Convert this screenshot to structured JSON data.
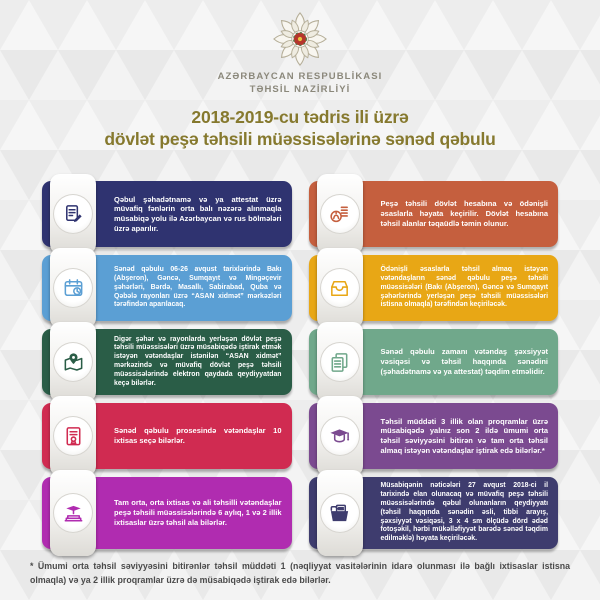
{
  "header": {
    "emblem_icon": "ministry-emblem",
    "org_line1": "AZƏRBAYCAN RESPUBLİKASI",
    "org_line2": "TƏHSİL NAZİRLİYİ",
    "title_line1": "2018-2019-cu tədris ili üzrə",
    "title_line2": "dövlət peşə təhsili müəssisələrinə sənəd qəbulu",
    "title_color": "#86792e"
  },
  "cards": [
    {
      "icon": "document-pencil",
      "color": "#2f3370",
      "text": "Qəbul şəhadətnamə və ya attestat üzrə müvafiq fənlərin orta balı nəzərə alınmaqla müsabiqə yolu ilə Azərbaycan və rus bölmələri üzrə aparılır."
    },
    {
      "icon": "coins",
      "color": "#c55f3e",
      "text": "Peşə təhsili dövlət hesabına və ödənişli əsaslarla həyata keçirilir. Dövlət hesabına təhsil alanlar təqaüdlə təmin olunur."
    },
    {
      "icon": "calendar-clock",
      "color": "#5b9fd4",
      "text": "Sənəd qəbulu 06-26 avqust tarixlərində Bakı (Abşeron), Gəncə, Sumqayıt və Mingəçevir şəhərləri, Bərdə, Masallı, Sabirabad, Quba və Qəbələ rayonları üzrə “ASAN xidmət” mərkəzləri tərəfindən aparılacaq."
    },
    {
      "icon": "inbox-tray",
      "color": "#e8a715",
      "text": "Ödənişli əsaslarla təhsil almaq istəyən vətəndaşların sənəd qəbulu peşə təhsili müəssisələri (Bakı (Abşeron), Gəncə və Sumqayıt şəhərlərində yerləşən peşə təhsili müəssisələri istisna olmaqla) tərəfindən keçiriləcək."
    },
    {
      "icon": "map-pin",
      "color": "#2a5d47",
      "text": "Digər şəhər və rayonlarda yerləşən dövlət peşə təhsili müəssisələri üzrə müsabiqədə iştirak etmək istəyən vətəndaşlar istənilən “ASAN xidmət” mərkəzində və müvafiq dövlət peşə təhsili müəssisələrində elektron qaydada qeydiyyatdan keçə bilərlər."
    },
    {
      "icon": "documents",
      "color": "#70a88b",
      "text": "Sənəd qəbulu zamanı vətəndaş şəxsiyyət vəsiqəsi və təhsil haqqında sənədini (şəhadətnamə və ya attestat) təqdim etməlidir."
    },
    {
      "icon": "certificate",
      "color": "#d02b51",
      "text": "Sənəd qəbulu prosesində vətəndaşlar 10 ixtisas seçə bilərlər."
    },
    {
      "icon": "graduation-cap",
      "color": "#7b4a90",
      "text": "Təhsil müddəti 3 illik olan proqramlar üzrə müsabiqədə yalnız son 2 ildə ümumi orta təhsil səviyyəsini bitirən və tam orta təhsil almaq istəyən vətəndaşlar iştirak edə bilərlər.*"
    },
    {
      "icon": "books-graduation",
      "color": "#b02cb0",
      "text": "Tam orta, orta ixtisas və ali təhsilli vətəndaşlar peşə təhsili müəssisələrində 6 aylıq, 1 və 2 illik ixtisaslar üzrə təhsil ala bilərlər."
    },
    {
      "icon": "folder-documents",
      "color": "#3e3c6e",
      "text": "Müsabiqənin nəticələri 27 avqust 2018-ci il tarixində elan olunacaq və müvafiq peşə təhsili müəssisələrində qəbul olunanların qeydiyyatı (təhsil haqqında sənədin əsli, tibbi arayış, şəxsiyyət vəsiqəsi, 3 x 4 sm ölçüdə dörd ədəd fotoşəkil, hərbi mükəlləfiyyət barədə sənəd təqdim edilməklə) həyata keçiriləcək."
    }
  ],
  "footer": {
    "note": "* Ümumi orta təhsil səviyyəsini bitirənlər təhsil müddəti 1 (nəqliyyat vasitələrinin idarə olunması ilə bağlı ixtisaslar istisna olmaqla) və ya 2 illik proqramlar üzrə də müsabiqədə iştirak edə bilərlər."
  }
}
